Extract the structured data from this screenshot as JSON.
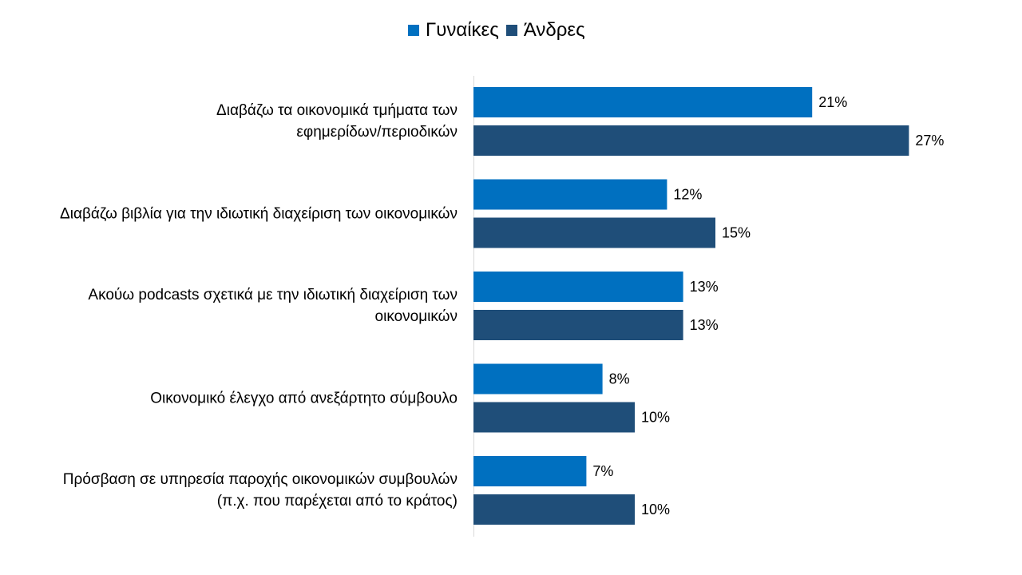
{
  "chart_data": {
    "type": "bar",
    "orientation": "horizontal",
    "categories": [
      "Διαβάζω τα οικονομικά τμήματα των\nεφημερίδων/περιοδικών",
      "Διαβάζω βιβλία για την ιδιωτική διαχείριση των οικονομικών",
      "Ακούω podcasts σχετικά με την ιδιωτική διαχείριση των\nοικονομικών",
      "Οικονομικό έλεγχο από ανεξάρτητο σύμβουλο",
      "Πρόσβαση σε υπηρεσία παροχής οικονομικών συμβουλών\n(π.χ. που παρέχεται από το κράτος)"
    ],
    "series": [
      {
        "name": "Γυναίκες",
        "color": "#0070C0",
        "values": [
          21,
          12,
          13,
          8,
          7
        ]
      },
      {
        "name": "Άνδρες",
        "color": "#1F4E79",
        "values": [
          27,
          15,
          13,
          10,
          10
        ]
      }
    ],
    "value_suffix": "%",
    "xlim": [
      0,
      30
    ],
    "grid": false,
    "legend": "top-center",
    "data_labels": true
  }
}
